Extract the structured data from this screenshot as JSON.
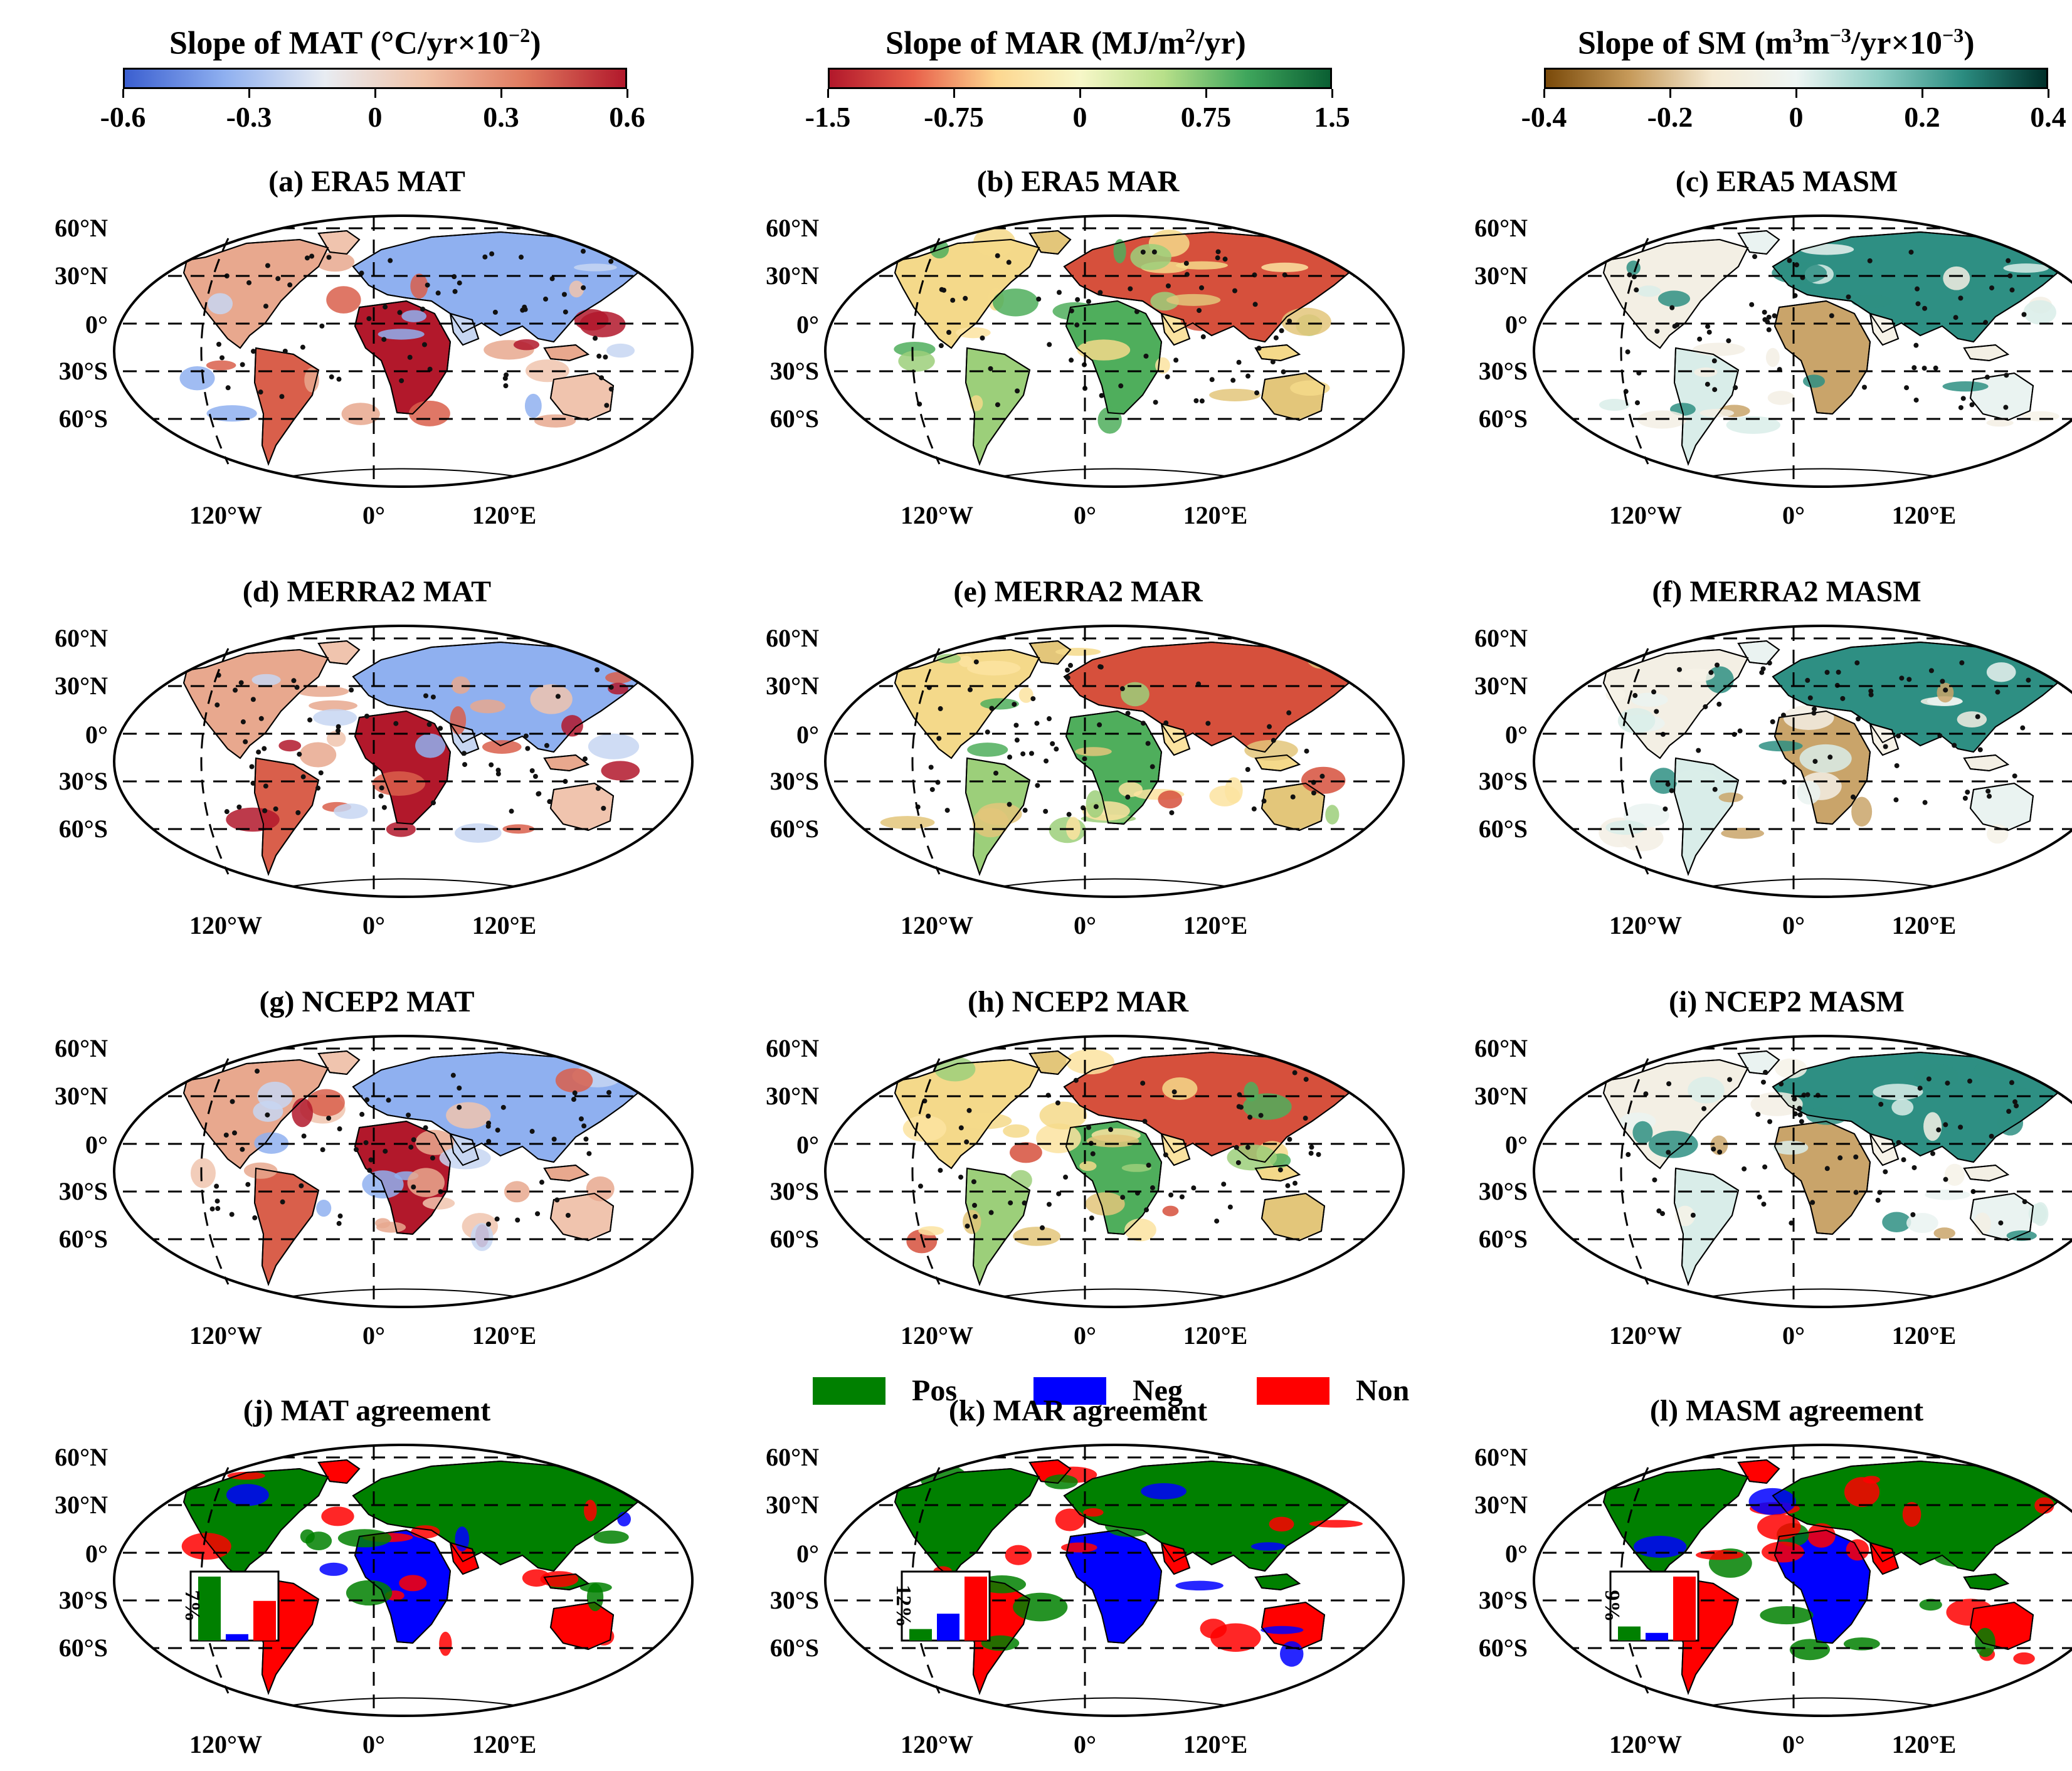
{
  "colorbars": [
    {
      "title": "Slope of MAT (°C/yr×10",
      "title_sup": "−2",
      "title_end": ")",
      "ticks": [
        "-0.6",
        "-0.3",
        "0",
        "0.3",
        "0.6"
      ],
      "colors": [
        "#3b5fd0",
        "#8fb0f0",
        "#e8ecf2",
        "#f1c3a8",
        "#e07a5f",
        "#b2182b"
      ]
    },
    {
      "title": "Slope of MAR (MJ/m",
      "title_sup": "2",
      "title_end": "/yr)",
      "ticks": [
        "-1.5",
        "-0.75",
        "0",
        "0.75",
        "1.5"
      ],
      "colors": [
        "#b2182b",
        "#e8604a",
        "#fdd790",
        "#f7f7c8",
        "#b8e08a",
        "#3fa65c",
        "#0a5f33"
      ]
    },
    {
      "title": "Slope of SM (m",
      "title_sup": "3",
      "title_mid": "m",
      "title_sup2": "−3",
      "title_end": "/yr×10",
      "title_sup3": "−3",
      "title_end2": ")",
      "ticks": [
        "-0.4",
        "-0.2",
        "0",
        "0.2",
        "0.4"
      ],
      "colors": [
        "#7a4a0a",
        "#c69a5a",
        "#f5ead2",
        "#eef5f3",
        "#8fcfc5",
        "#2b8c80",
        "#00302a"
      ]
    }
  ],
  "panels": [
    {
      "title": "(a) ERA5 MAT",
      "variable": "MAT"
    },
    {
      "title": "(b) ERA5 MAR",
      "variable": "MAR"
    },
    {
      "title": "(c) ERA5 MASM",
      "variable": "SM"
    },
    {
      "title": "(d) MERRA2 MAT",
      "variable": "MAT"
    },
    {
      "title": "(e) MERRA2 MAR",
      "variable": "MAR"
    },
    {
      "title": "(f) MERRA2 MASM",
      "variable": "SM"
    },
    {
      "title": "(g) NCEP2 MAT",
      "variable": "MAT"
    },
    {
      "title": "(h) NCEP2 MAR",
      "variable": "MAR"
    },
    {
      "title": "(i) NCEP2 MASM",
      "variable": "SM"
    },
    {
      "title": "(j) MAT agreement",
      "variable": "AGR",
      "inset_label": "7%",
      "inset_values": [
        1.0,
        0.1,
        0.62
      ]
    },
    {
      "title": "(k) MAR agreement",
      "variable": "AGR",
      "inset_label": "12%",
      "inset_values": [
        0.18,
        0.42,
        1.0
      ]
    },
    {
      "title": "(l) MASM agreement",
      "variable": "AGR",
      "inset_label": "9%",
      "inset_values": [
        0.22,
        0.12,
        1.0
      ]
    }
  ],
  "lat_labels": [
    "60°N",
    "30°N",
    "0°",
    "30°S",
    "60°S"
  ],
  "lon_labels": [
    "120°W",
    "0°",
    "120°E"
  ],
  "legend": [
    {
      "label": "Pos",
      "color": "#008000"
    },
    {
      "label": "Neg",
      "color": "#0000ff"
    },
    {
      "label": "Non",
      "color": "#ff0000"
    }
  ]
}
